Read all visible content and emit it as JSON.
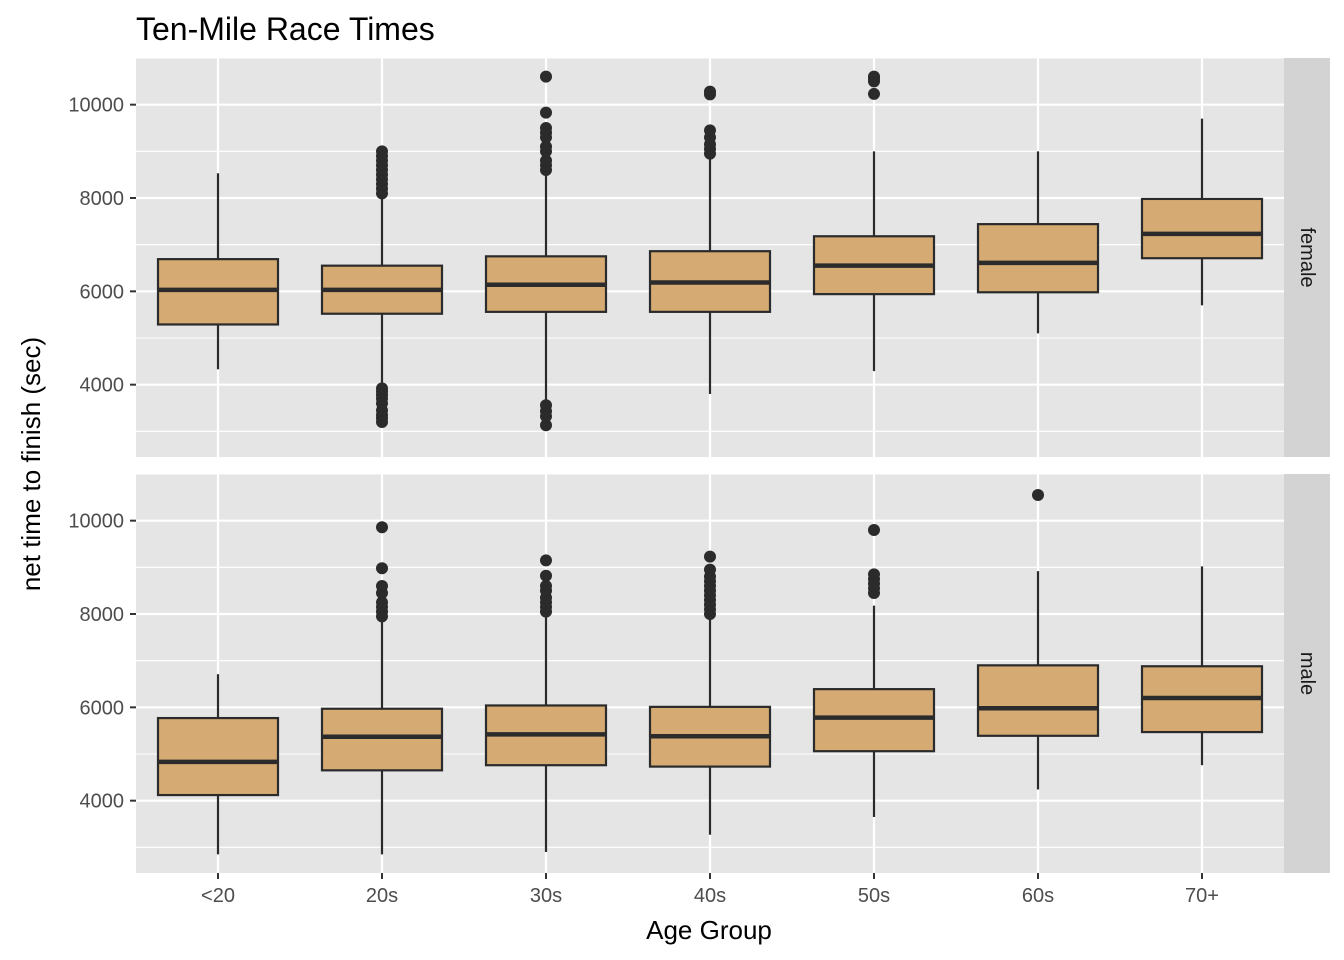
{
  "chart_data": {
    "type": "boxplot",
    "title": "Ten-Mile Race Times",
    "xlabel": "Age Group",
    "ylabel": "net time to finish (sec)",
    "categories": [
      "<20",
      "20s",
      "30s",
      "40s",
      "50s",
      "60s",
      "70+"
    ],
    "y_ticks": [
      4000,
      6000,
      8000,
      10000
    ],
    "ylim": [
      2450,
      11000
    ],
    "grid": true,
    "colors": {
      "panel_bg": "#e5e5e5",
      "grid": "#ffffff",
      "box_fill": "#d6aa73",
      "box_stroke": "#2b2b2b",
      "strip_bg": "#d3d3d3"
    },
    "facets": [
      {
        "label": "female",
        "boxes": [
          {
            "category": "<20",
            "lower_whisker": 4330,
            "q1": 5290,
            "median": 6030,
            "q3": 6690,
            "upper_whisker": 8530,
            "outliers": []
          },
          {
            "category": "20s",
            "lower_whisker": 3940,
            "q1": 5520,
            "median": 6030,
            "q3": 6550,
            "upper_whisker": 9000,
            "outliers": [
              3200,
              3280,
              3350,
              3450,
              3600,
              3700,
              3780,
              3850,
              3920,
              8100,
              8200,
              8300,
              8400,
              8500,
              8600,
              8700,
              8800,
              8900,
              9000
            ]
          },
          {
            "category": "30s",
            "lower_whisker": 3650,
            "q1": 5560,
            "median": 6140,
            "q3": 6750,
            "upper_whisker": 8550,
            "outliers": [
              3130,
              3320,
              3430,
              3560,
              8600,
              8700,
              8800,
              9000,
              9100,
              9300,
              9400,
              9500,
              9830,
              10600
            ]
          },
          {
            "category": "40s",
            "lower_whisker": 3800,
            "q1": 5560,
            "median": 6190,
            "q3": 6860,
            "upper_whisker": 8900,
            "outliers": [
              8950,
              9050,
              9150,
              9300,
              9450,
              10220,
              10280
            ]
          },
          {
            "category": "50s",
            "lower_whisker": 4290,
            "q1": 5940,
            "median": 6550,
            "q3": 7180,
            "upper_whisker": 9000,
            "outliers": [
              10230,
              10500,
              10550,
              10600
            ]
          },
          {
            "category": "60s",
            "lower_whisker": 5100,
            "q1": 5980,
            "median": 6610,
            "q3": 7440,
            "upper_whisker": 9000,
            "outliers": []
          },
          {
            "category": "70+",
            "lower_whisker": 5700,
            "q1": 6710,
            "median": 7230,
            "q3": 7980,
            "upper_whisker": 9700,
            "outliers": []
          }
        ]
      },
      {
        "label": "male",
        "boxes": [
          {
            "category": "<20",
            "lower_whisker": 2850,
            "q1": 4120,
            "median": 4830,
            "q3": 5770,
            "upper_whisker": 6710,
            "outliers": []
          },
          {
            "category": "20s",
            "lower_whisker": 2850,
            "q1": 4650,
            "median": 5370,
            "q3": 5970,
            "upper_whisker": 7900,
            "outliers": [
              7950,
              8050,
              8150,
              8250,
              8450,
              8600,
              8980,
              9860
            ]
          },
          {
            "category": "30s",
            "lower_whisker": 2900,
            "q1": 4760,
            "median": 5420,
            "q3": 6040,
            "upper_whisker": 8000,
            "outliers": [
              8050,
              8150,
              8250,
              8350,
              8500,
              8600,
              8820,
              9150
            ]
          },
          {
            "category": "40s",
            "lower_whisker": 3270,
            "q1": 4730,
            "median": 5380,
            "q3": 6010,
            "upper_whisker": 7950,
            "outliers": [
              8000,
              8100,
              8200,
              8300,
              8400,
              8500,
              8600,
              8700,
              8800,
              8950,
              9230
            ]
          },
          {
            "category": "50s",
            "lower_whisker": 3650,
            "q1": 5060,
            "median": 5780,
            "q3": 6390,
            "upper_whisker": 8180,
            "outliers": [
              8450,
              8550,
              8650,
              8750,
              8850,
              9800
            ]
          },
          {
            "category": "60s",
            "lower_whisker": 4240,
            "q1": 5390,
            "median": 5980,
            "q3": 6900,
            "upper_whisker": 8920,
            "outliers": [
              10550
            ]
          },
          {
            "category": "70+",
            "lower_whisker": 4760,
            "q1": 5470,
            "median": 6200,
            "q3": 6880,
            "upper_whisker": 9020,
            "outliers": []
          }
        ]
      }
    ]
  }
}
